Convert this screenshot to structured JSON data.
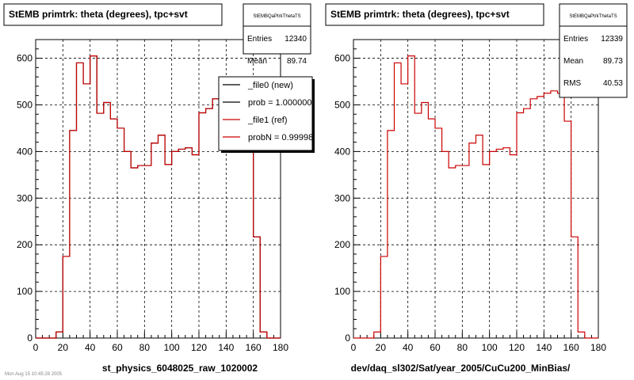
{
  "chart_data": [
    {
      "type": "histogram",
      "title": "StEMB primtrk: theta (degrees), tpc+svt",
      "xlabel": "st_physics_6048025_raw_1020002",
      "xlim": [
        0,
        180
      ],
      "ylim": [
        0,
        640
      ],
      "xticks": [
        0,
        20,
        40,
        60,
        80,
        100,
        120,
        140,
        160,
        180
      ],
      "yticks": [
        0,
        100,
        200,
        300,
        400,
        500,
        600
      ],
      "grid": true,
      "bin_width": 5,
      "stats": {
        "name": "StEMBQaPtrkThetaTS",
        "rows": [
          {
            "label": "Entries",
            "value": "12340"
          },
          {
            "label": "Mean",
            "value": "89.74"
          }
        ]
      },
      "legend": [
        {
          "label": "_file0 (new)",
          "color": "#000000"
        },
        {
          "label": "prob = 1.000000",
          "color": "#000000"
        },
        {
          "label": "_file1 (ref)",
          "color": "#cc0000"
        },
        {
          "label": "probN = 0.99998",
          "color": "#cc0000"
        }
      ],
      "series": [
        {
          "color": "#000000",
          "x": [
            0,
            5,
            10,
            15,
            20,
            25,
            30,
            35,
            40,
            45,
            50,
            55,
            60,
            65,
            70,
            75,
            80,
            85,
            90,
            95,
            100,
            105,
            110,
            115,
            120,
            125,
            130,
            135,
            140,
            145,
            150,
            155,
            160,
            165,
            170,
            175
          ],
          "values": [
            0,
            0,
            0,
            13,
            175,
            445,
            590,
            545,
            605,
            482,
            505,
            470,
            450,
            400,
            365,
            370,
            370,
            418,
            435,
            372,
            400,
            405,
            408,
            393,
            483,
            492,
            513,
            518,
            525,
            530,
            525,
            465,
            217,
            13,
            0,
            0
          ]
        },
        {
          "color": "#cc0000",
          "x": [
            0,
            5,
            10,
            15,
            20,
            25,
            30,
            35,
            40,
            45,
            50,
            55,
            60,
            65,
            70,
            75,
            80,
            85,
            90,
            95,
            100,
            105,
            110,
            115,
            120,
            125,
            130,
            135,
            140,
            145,
            150,
            155,
            160,
            165,
            170,
            175
          ],
          "values": [
            0,
            0,
            0,
            13,
            175,
            445,
            590,
            545,
            605,
            482,
            505,
            470,
            450,
            400,
            365,
            370,
            370,
            418,
            435,
            372,
            400,
            405,
            408,
            393,
            483,
            492,
            513,
            518,
            525,
            530,
            525,
            465,
            217,
            13,
            0,
            0
          ]
        }
      ]
    },
    {
      "type": "histogram",
      "title": "StEMB primtrk: theta (degrees), tpc+svt",
      "xlabel": "dev/daq_sl302/Sat/year_2005/CuCu200_MinBias/",
      "xlim": [
        0,
        180
      ],
      "ylim": [
        0,
        640
      ],
      "xticks": [
        0,
        20,
        40,
        60,
        80,
        100,
        120,
        140,
        160,
        180
      ],
      "yticks": [
        0,
        100,
        200,
        300,
        400,
        500,
        600
      ],
      "grid": true,
      "bin_width": 5,
      "stats": {
        "name": "StEMBQaPtrkThetaTS",
        "rows": [
          {
            "label": "Entries",
            "value": "12339"
          },
          {
            "label": "Mean",
            "value": "89.73"
          },
          {
            "label": "RMS",
            "value": "40.53"
          }
        ]
      },
      "legend": [],
      "series": [
        {
          "color": "#cc0000",
          "x": [
            0,
            5,
            10,
            15,
            20,
            25,
            30,
            35,
            40,
            45,
            50,
            55,
            60,
            65,
            70,
            75,
            80,
            85,
            90,
            95,
            100,
            105,
            110,
            115,
            120,
            125,
            130,
            135,
            140,
            145,
            150,
            155,
            160,
            165,
            170,
            175
          ],
          "values": [
            0,
            0,
            0,
            13,
            175,
            445,
            590,
            545,
            605,
            482,
            505,
            470,
            450,
            400,
            365,
            370,
            370,
            418,
            435,
            372,
            400,
            405,
            408,
            393,
            483,
            492,
            513,
            518,
            525,
            530,
            525,
            465,
            217,
            13,
            0,
            0
          ]
        }
      ]
    }
  ],
  "footer_note": "Mon Aug 15 10:45:28 2005"
}
